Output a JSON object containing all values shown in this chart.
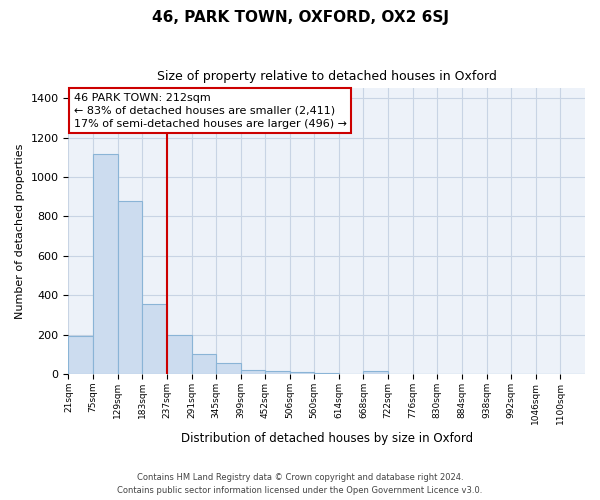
{
  "title": "46, PARK TOWN, OXFORD, OX2 6SJ",
  "subtitle": "Size of property relative to detached houses in Oxford",
  "xlabel": "Distribution of detached houses by size in Oxford",
  "ylabel": "Number of detached properties",
  "bar_color": "#ccdcef",
  "bar_edge_color": "#8ab4d6",
  "background_color": "#ffffff",
  "plot_bg_color": "#edf2f9",
  "grid_color": "#c8d4e4",
  "bin_labels": [
    "21sqm",
    "75sqm",
    "129sqm",
    "183sqm",
    "237sqm",
    "291sqm",
    "345sqm",
    "399sqm",
    "452sqm",
    "506sqm",
    "560sqm",
    "614sqm",
    "668sqm",
    "722sqm",
    "776sqm",
    "830sqm",
    "884sqm",
    "938sqm",
    "992sqm",
    "1046sqm",
    "1100sqm"
  ],
  "bar_heights": [
    190,
    1115,
    880,
    355,
    195,
    100,
    55,
    20,
    15,
    10,
    5,
    0,
    15,
    0,
    0,
    0,
    0,
    0,
    0,
    0,
    0
  ],
  "annotation_line1": "46 PARK TOWN: 212sqm",
  "annotation_line2": "← 83% of detached houses are smaller (2,411)",
  "annotation_line3": "17% of semi-detached houses are larger (496) →",
  "vline_bin_index": 3,
  "bin_edges": [
    21,
    75,
    129,
    183,
    237,
    291,
    345,
    399,
    452,
    506,
    560,
    614,
    668,
    722,
    776,
    830,
    884,
    938,
    992,
    1046,
    1100
  ],
  "bin_width": 54,
  "ylim": [
    0,
    1450
  ],
  "yticks": [
    0,
    200,
    400,
    600,
    800,
    1000,
    1200,
    1400
  ],
  "footnote1": "Contains HM Land Registry data © Crown copyright and database right 2024.",
  "footnote2": "Contains public sector information licensed under the Open Government Licence v3.0."
}
